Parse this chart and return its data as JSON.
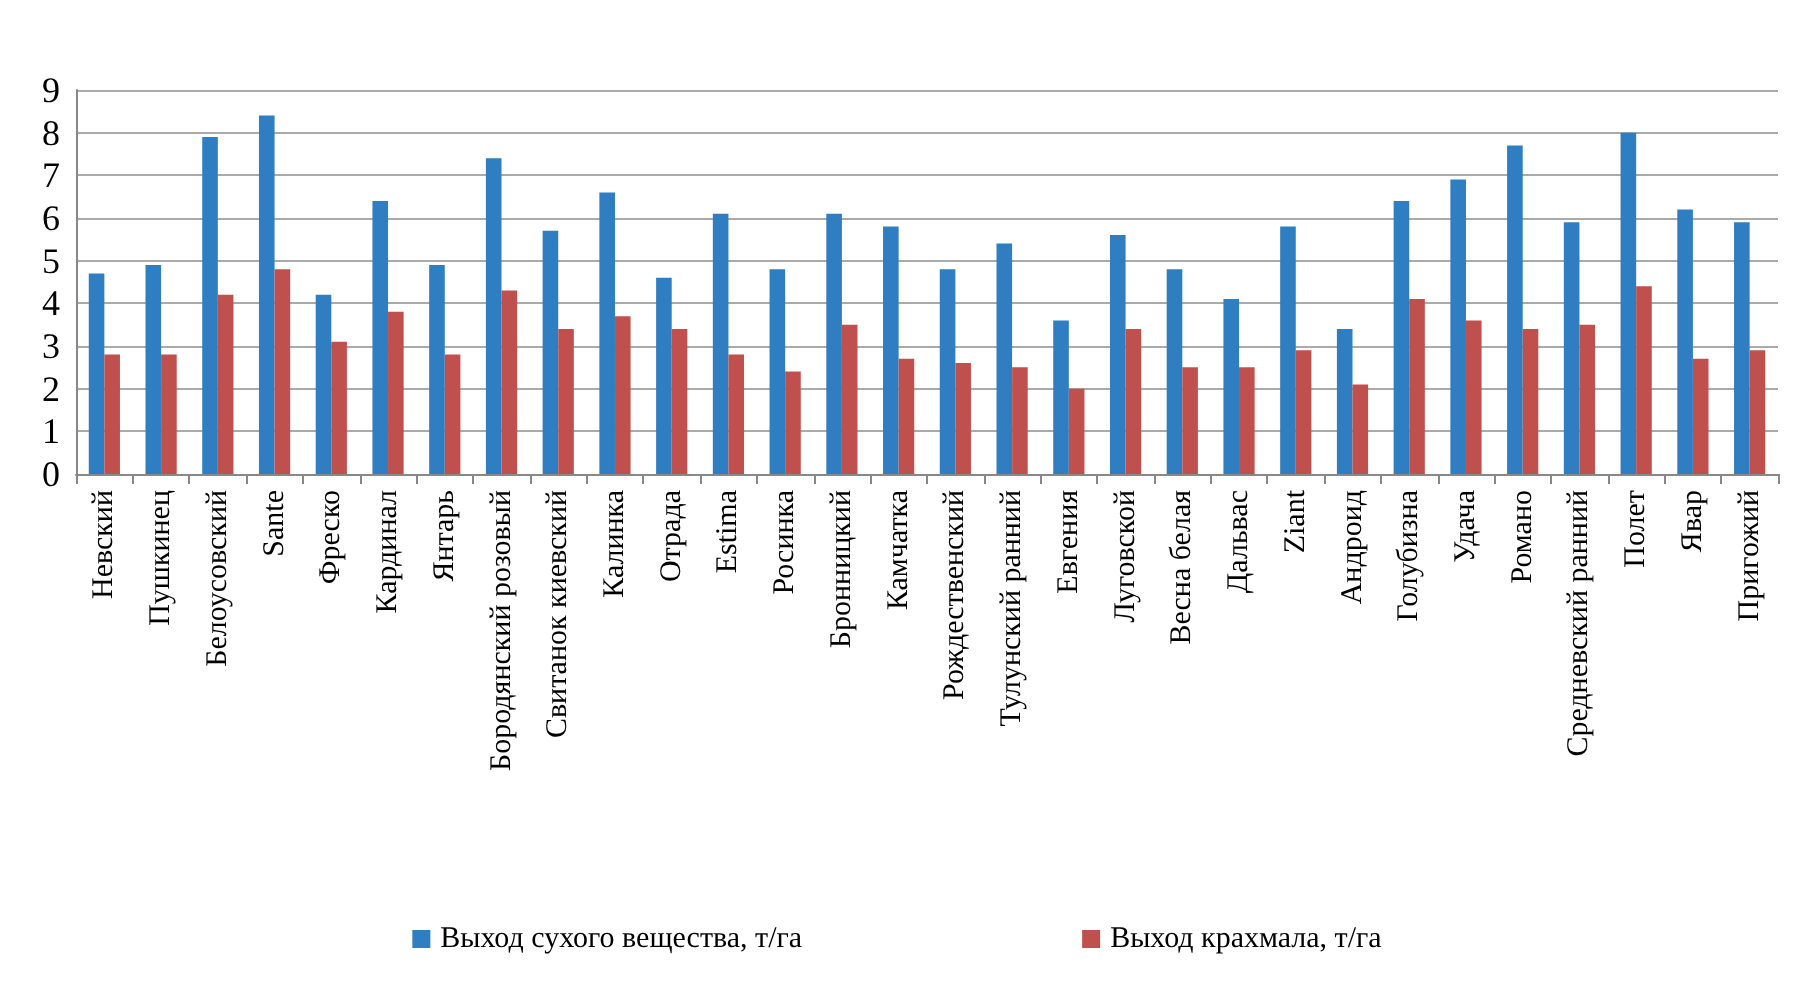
{
  "chart_data": {
    "type": "bar",
    "categories": [
      "Невский",
      "Пушкинец",
      "Белоусовский",
      "Sante",
      "Фреско",
      "Кардинал",
      "Янтарь",
      "Бородянский розовый",
      "Свитанок киевский",
      "Калинка",
      "Отрада",
      "Estima",
      "Росинка",
      "Бронницкий",
      "Камчатка",
      "Рождественский",
      "Тулунский ранний",
      "Евгения",
      "Луговской",
      "Весна белая",
      "Дальвас",
      "Ziant",
      "Андроид",
      "Голубизна",
      "Удача",
      "Романо",
      "Средневский ранний",
      "Полет",
      "Явар",
      "Пригожий"
    ],
    "series": [
      {
        "name": "Выход сухого вещества, т/га",
        "color": "#2e7ec1",
        "values": [
          4.7,
          4.9,
          7.9,
          8.4,
          4.2,
          6.4,
          4.9,
          7.4,
          5.7,
          6.6,
          4.6,
          6.1,
          4.8,
          6.1,
          5.8,
          4.8,
          5.4,
          3.6,
          5.6,
          4.8,
          4.1,
          5.8,
          3.4,
          6.4,
          6.9,
          7.7,
          5.9,
          8.0,
          6.2,
          5.9
        ]
      },
      {
        "name": "Выход крахмала, т/га",
        "color": "#c0504d",
        "values": [
          2.8,
          2.8,
          4.2,
          4.8,
          3.1,
          3.8,
          2.8,
          4.3,
          3.4,
          3.7,
          3.4,
          2.8,
          2.4,
          3.5,
          2.7,
          2.6,
          2.5,
          2.0,
          3.4,
          2.5,
          2.5,
          2.9,
          2.1,
          4.1,
          3.6,
          3.4,
          3.5,
          4.4,
          2.7,
          2.9
        ]
      }
    ],
    "ylim": [
      0,
      9
    ],
    "yticks": [
      0,
      1,
      2,
      3,
      4,
      5,
      6,
      7,
      8,
      9
    ],
    "grid": "y",
    "legend": "bottom"
  }
}
